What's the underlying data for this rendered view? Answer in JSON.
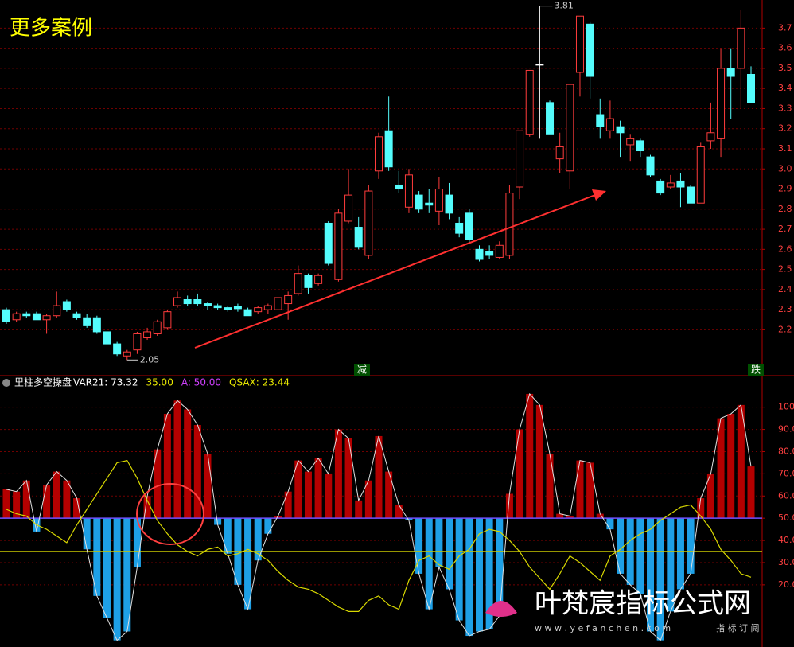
{
  "chart_data": [
    {
      "type": "candlestick",
      "title": "更多案例",
      "open": [
        2.3,
        2.25,
        2.28,
        2.28,
        2.25,
        2.27,
        2.34,
        2.28,
        2.26,
        2.26,
        2.19,
        2.13,
        2.07,
        2.1,
        2.16,
        2.18,
        2.21,
        2.32,
        2.35,
        2.35,
        2.33,
        2.32,
        2.31,
        2.315,
        2.3,
        2.29,
        2.3,
        2.3,
        2.33,
        2.38,
        2.47,
        2.43,
        2.73,
        2.45,
        2.74,
        2.71,
        2.57,
        2.99,
        3.19,
        2.92,
        2.81,
        2.87,
        2.83,
        2.79,
        2.87,
        2.73,
        2.78,
        2.6,
        2.59,
        2.56,
        2.57,
        2.91,
        3.17,
        3.52,
        3.33,
        3.05,
        2.99,
        3.48,
        3.72,
        3.27,
        3.19,
        3.21,
        3.12,
        3.14,
        3.06,
        2.94,
        2.91,
        2.94,
        2.91,
        2.83,
        3.14,
        3.15,
        3.5,
        3.5,
        3.47
      ],
      "high": [
        2.31,
        2.29,
        2.29,
        2.29,
        2.28,
        2.39,
        2.35,
        2.29,
        2.28,
        2.27,
        2.2,
        2.14,
        2.1,
        2.19,
        2.21,
        2.25,
        2.3,
        2.39,
        2.37,
        2.38,
        2.34,
        2.33,
        2.32,
        2.33,
        2.31,
        2.32,
        2.33,
        2.37,
        2.39,
        2.52,
        2.48,
        2.48,
        2.74,
        2.8,
        3.0,
        2.76,
        2.92,
        3.18,
        3.36,
        2.99,
        3.0,
        2.89,
        2.9,
        2.96,
        2.93,
        2.76,
        2.8,
        2.62,
        2.62,
        2.64,
        2.92,
        3.19,
        3.49,
        3.81,
        3.34,
        3.18,
        3.42,
        3.76,
        3.73,
        3.35,
        3.34,
        3.24,
        3.17,
        3.15,
        3.07,
        2.95,
        2.97,
        2.98,
        2.92,
        3.13,
        3.33,
        3.6,
        3.6,
        3.79,
        3.51
      ],
      "low": [
        2.23,
        2.24,
        2.26,
        2.25,
        2.18,
        2.26,
        2.29,
        2.25,
        2.21,
        2.18,
        2.12,
        2.07,
        2.05,
        2.08,
        2.15,
        2.17,
        2.2,
        2.31,
        2.32,
        2.32,
        2.3,
        2.3,
        2.29,
        2.29,
        2.27,
        2.28,
        2.28,
        2.26,
        2.25,
        2.37,
        2.38,
        2.42,
        2.52,
        2.44,
        2.73,
        2.6,
        2.55,
        2.95,
        2.99,
        2.88,
        2.78,
        2.78,
        2.78,
        2.72,
        2.75,
        2.66,
        2.63,
        2.54,
        2.55,
        2.55,
        2.55,
        2.85,
        3.16,
        3.15,
        3.17,
        2.98,
        2.9,
        3.36,
        3.35,
        3.15,
        3.15,
        3.06,
        3.04,
        3.06,
        2.96,
        2.87,
        2.9,
        2.81,
        2.83,
        2.83,
        3.1,
        3.06,
        3.25,
        3.3,
        3.33
      ],
      "close": [
        2.24,
        2.28,
        2.27,
        2.25,
        2.27,
        2.32,
        2.3,
        2.26,
        2.22,
        2.19,
        2.13,
        2.08,
        2.09,
        2.18,
        2.19,
        2.24,
        2.29,
        2.36,
        2.33,
        2.33,
        2.32,
        2.31,
        2.3,
        2.305,
        2.27,
        2.31,
        2.32,
        2.36,
        2.37,
        2.48,
        2.41,
        2.47,
        2.53,
        2.78,
        2.87,
        2.61,
        2.89,
        3.16,
        3.01,
        2.9,
        2.97,
        2.8,
        2.82,
        2.9,
        2.78,
        2.68,
        2.65,
        2.55,
        2.57,
        2.62,
        2.88,
        3.19,
        3.49,
        3.52,
        3.17,
        3.11,
        3.42,
        3.76,
        3.46,
        3.21,
        3.25,
        3.18,
        3.15,
        3.09,
        2.97,
        2.88,
        2.93,
        2.91,
        2.83,
        3.11,
        3.18,
        3.5,
        3.46,
        3.7,
        3.33
      ],
      "up_color": "#ff3c3c",
      "down_color": "#54fcfc",
      "flat_color": "#ffffff",
      "max_label": "3.81",
      "min_label": "2.05",
      "signals": [
        "减",
        "跌"
      ],
      "ylim": [
        1.98,
        3.84
      ],
      "yticks": [
        2.2,
        2.3,
        2.4,
        2.5,
        2.6,
        2.7,
        2.8,
        2.9,
        {
          "value": 3,
          "label": "3.0"
        },
        3.1,
        3.2,
        3.3,
        3.4,
        3.5,
        3.6,
        3.7
      ],
      "grid": true
    },
    {
      "type": "bar",
      "title": "里柱多空操盘",
      "legend": [
        {
          "text": "VAR21: 73.32",
          "color": "#ffffff"
        },
        {
          "text": "35.00",
          "color": "#e8e800"
        },
        {
          "text": "A: 50.00",
          "color": "#d040ff"
        },
        {
          "text": "QSAX: 23.44",
          "color": "#e8e800"
        }
      ],
      "values": [
        63,
        62,
        67,
        44,
        65,
        71,
        67,
        59,
        36,
        15,
        5,
        -5,
        -1,
        28,
        60,
        81,
        97,
        103,
        99,
        92,
        79,
        47,
        34,
        20,
        9,
        31,
        43,
        51,
        62,
        76,
        71,
        77,
        70,
        90,
        86,
        58,
        67,
        87,
        71,
        56,
        49,
        25,
        9,
        28,
        18,
        4,
        -3,
        -1,
        0,
        6,
        61,
        90,
        106,
        101,
        79,
        52,
        51,
        76,
        75,
        52,
        45,
        25,
        20,
        16,
        -1,
        -5,
        8,
        18,
        25,
        59,
        70,
        95,
        97,
        101,
        73.32
      ],
      "up_color": "#b40000",
      "down_color": "#1ea0e6",
      "outline_color": "#e0e0e0",
      "line": {
        "color": "#d8d800",
        "values": [
          54,
          52,
          51,
          47,
          45,
          42,
          39,
          47,
          54,
          61,
          68,
          75,
          76,
          68,
          58,
          49,
          43,
          38,
          35,
          33,
          36,
          37,
          33,
          34,
          36,
          34,
          31,
          26,
          22,
          19,
          18,
          16,
          13,
          10,
          8,
          8,
          13,
          15,
          11,
          9,
          22,
          31,
          33,
          29,
          27,
          33,
          36,
          43,
          45,
          44,
          40,
          35,
          28,
          23,
          18,
          25,
          33,
          30,
          26,
          22,
          33,
          36,
          40,
          43,
          45,
          49,
          52,
          55,
          56,
          51,
          45,
          36,
          31,
          25,
          23.44
        ]
      },
      "ref_lines": [
        {
          "value": 35,
          "color": "#c8c800"
        },
        {
          "value": 50,
          "color": "#7050ff"
        }
      ],
      "ylim": [
        -8,
        113.5
      ],
      "yticks": [
        {
          "value": 20,
          "label": "20.0"
        },
        {
          "value": 30,
          "label": "30.0"
        },
        {
          "value": 40,
          "label": "40.0"
        },
        {
          "value": 50,
          "label": "50.0"
        },
        {
          "value": 60,
          "label": "60.0"
        },
        {
          "value": 70,
          "label": "70.0"
        },
        {
          "value": 80,
          "label": "80.0"
        },
        {
          "value": 90,
          "label": "90.0"
        },
        100
      ],
      "grid": true
    }
  ],
  "watermark": {
    "name": "叶梵宸指标公式网",
    "url": "w w w . y e f a n c h e n . c o m",
    "tag": "指 标 订 阅"
  }
}
